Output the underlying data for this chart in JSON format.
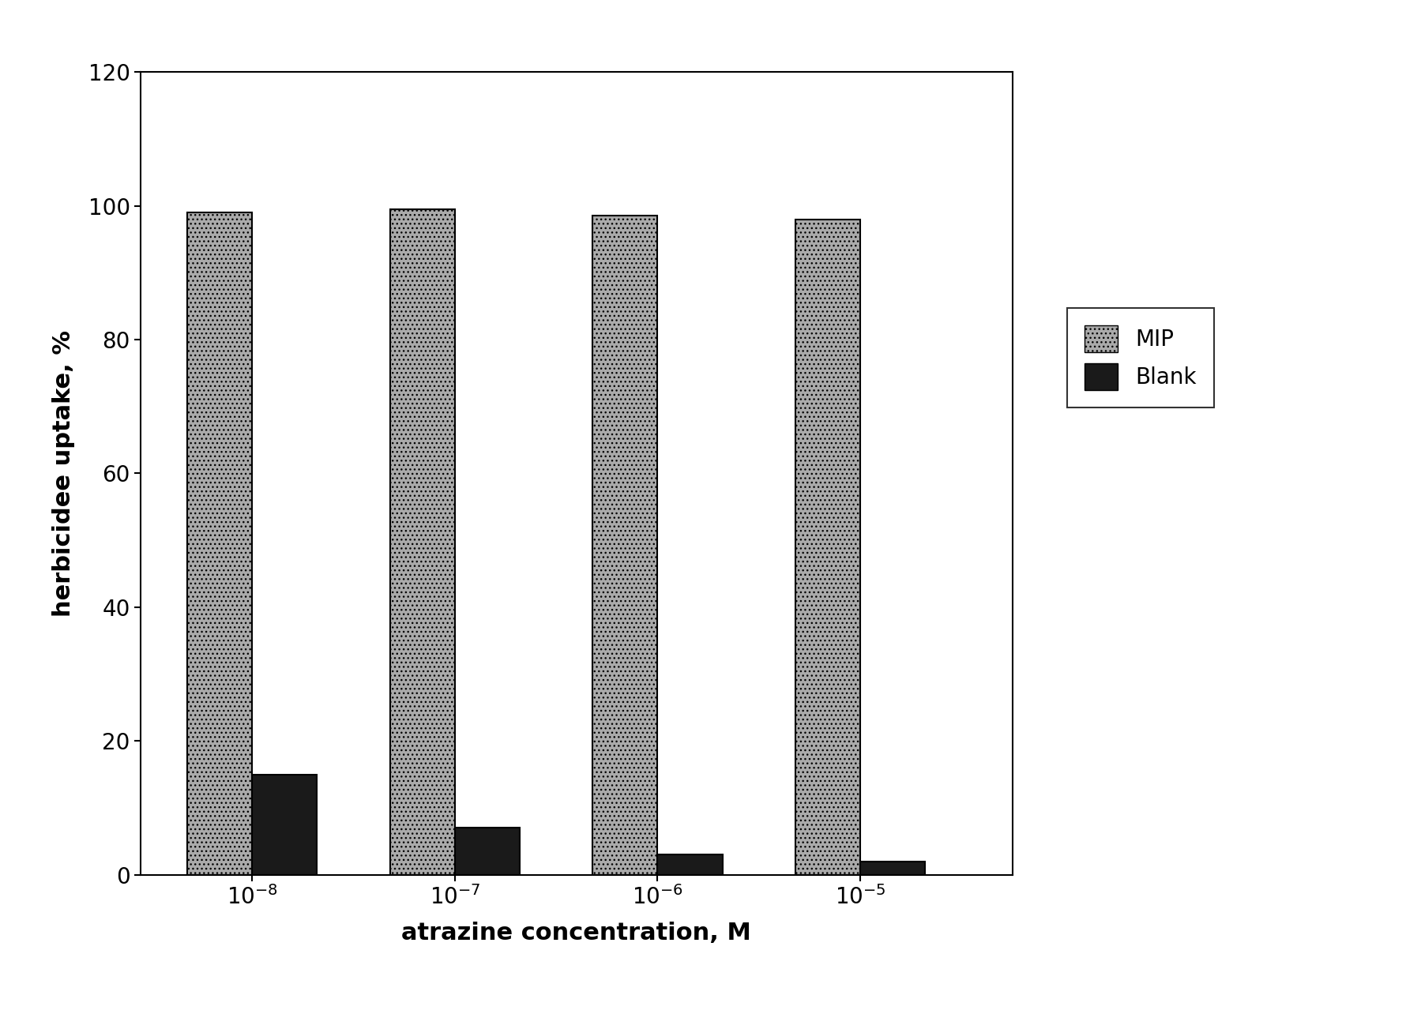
{
  "x_labels": [
    "$10^{-8}$",
    "$10^{-7}$",
    "$10^{-6}$",
    "$10^{-5}$"
  ],
  "mip_values": [
    99,
    99.5,
    98.5,
    98
  ],
  "blank_values": [
    15,
    7,
    3,
    2
  ],
  "mip_color": "#aaaaaa",
  "blank_color": "#1a1a1a",
  "mip_hatch": "...",
  "blank_hatch": "",
  "ylabel": "herbicidee uptake, %",
  "xlabel": "atrazine concentration, M",
  "ylim": [
    0,
    120
  ],
  "yticks": [
    0,
    20,
    40,
    60,
    80,
    100,
    120
  ],
  "bar_width": 0.32,
  "group_positions": [
    1,
    2,
    3,
    4
  ],
  "axis_fontsize": 22,
  "tick_fontsize": 20,
  "legend_fontsize": 20,
  "background_color": "#ffffff"
}
